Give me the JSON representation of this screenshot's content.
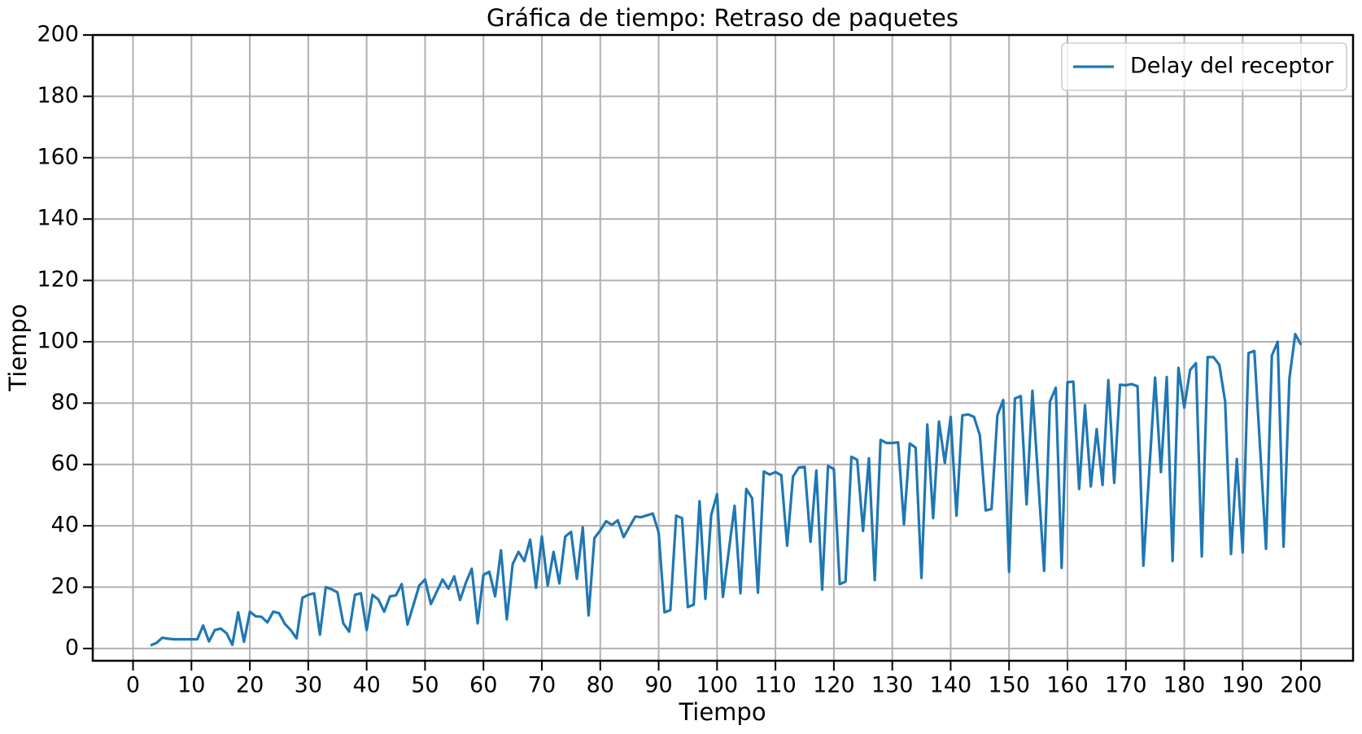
{
  "chart_data": {
    "type": "line",
    "title": "Gráfica de tiempo: Retraso de paquetes",
    "xlabel": "Tiempo",
    "ylabel": "Tiempo",
    "x": [
      3,
      4,
      5,
      6,
      7,
      8,
      9,
      10,
      11,
      12,
      13,
      14,
      15,
      16,
      17,
      18,
      19,
      20,
      21,
      22,
      23,
      24,
      25,
      26,
      27,
      28,
      29,
      30,
      31,
      32,
      33,
      34,
      35,
      36,
      37,
      38,
      39,
      40,
      41,
      42,
      43,
      44,
      45,
      46,
      47,
      49,
      50,
      51,
      53,
      54,
      55,
      56,
      57,
      58,
      59,
      60,
      61,
      62,
      63,
      64,
      65,
      66,
      67,
      68,
      69,
      70,
      71,
      72,
      73,
      74,
      75,
      76,
      77,
      78,
      79,
      80,
      81,
      82,
      83,
      84,
      86,
      87,
      89,
      90,
      91,
      92,
      93,
      94,
      95,
      96,
      97,
      98,
      99,
      100,
      101,
      103,
      104,
      105,
      106,
      107,
      108,
      109,
      110,
      111,
      112,
      113,
      114,
      115,
      116,
      117,
      118,
      119,
      120,
      121,
      122,
      123,
      124,
      125,
      126,
      127,
      128,
      129,
      130,
      131,
      132,
      133,
      134,
      135,
      136,
      137,
      138,
      139,
      140,
      141,
      142,
      143,
      144,
      145,
      146,
      147,
      148,
      149,
      150,
      151,
      152,
      153,
      154,
      156,
      157,
      158,
      159,
      160,
      161,
      162,
      163,
      164,
      165,
      166,
      167,
      168,
      169,
      170,
      171,
      172,
      173,
      175,
      176,
      177,
      178,
      179,
      180,
      181,
      182,
      183,
      184,
      185,
      186,
      187,
      188,
      189,
      190,
      191,
      192,
      194,
      195,
      196,
      197,
      198,
      199,
      200
    ],
    "series": [
      {
        "name": "Delay del receptor",
        "color": "#1f77b4",
        "values": [
          1.0,
          1.8,
          3.5,
          3.2,
          3.0,
          3.0,
          3.0,
          3.0,
          3.0,
          7.5,
          2.3,
          6.0,
          6.5,
          5.0,
          1.2,
          11.8,
          2.2,
          12.0,
          10.5,
          10.3,
          8.5,
          12.0,
          11.5,
          8.0,
          6.0,
          3.3,
          16.5,
          17.5,
          18.0,
          4.5,
          20.0,
          19.3,
          18.3,
          8.2,
          5.5,
          17.5,
          18.0,
          6.0,
          17.5,
          16.0,
          12.0,
          17.0,
          17.3,
          21.0,
          7.8,
          20.5,
          22.5,
          14.5,
          22.5,
          19.5,
          23.5,
          15.8,
          21.5,
          26.0,
          8.2,
          24.0,
          25.0,
          17.0,
          32.0,
          9.5,
          27.5,
          31.5,
          28.5,
          35.5,
          19.8,
          36.5,
          20.5,
          31.5,
          21.2,
          36.5,
          38.0,
          22.7,
          39.5,
          10.8,
          36.0,
          38.5,
          41.5,
          40.3,
          41.8,
          36.3,
          43.0,
          42.8,
          44.0,
          37.8,
          11.8,
          12.5,
          43.3,
          42.5,
          13.5,
          14.3,
          48.0,
          16.2,
          43.5,
          50.3,
          16.8,
          46.5,
          18.0,
          52.0,
          49.0,
          18.2,
          57.7,
          56.7,
          57.5,
          56.5,
          33.5,
          56.0,
          59.0,
          59.2,
          34.8,
          58.0,
          19.2,
          59.5,
          58.5,
          21.0,
          21.8,
          62.5,
          61.5,
          38.3,
          62.0,
          22.3,
          68.0,
          67.0,
          67.0,
          67.2,
          40.5,
          66.8,
          65.5,
          23.0,
          73.0,
          42.5,
          74.0,
          60.5,
          75.5,
          43.3,
          76.0,
          76.3,
          75.5,
          69.5,
          45.0,
          45.5,
          76.0,
          81.0,
          25.0,
          81.5,
          82.3,
          47.0,
          84.0,
          25.3,
          80.5,
          85.0,
          26.3,
          86.8,
          87.0,
          52.0,
          79.3,
          52.8,
          71.5,
          53.3,
          87.5,
          54.0,
          86.0,
          85.8,
          86.2,
          85.5,
          27.0,
          88.3,
          57.5,
          88.5,
          28.5,
          91.5,
          78.5,
          90.8,
          93.0,
          30.0,
          95.0,
          95.0,
          92.5,
          80.5,
          30.8,
          61.8,
          31.3,
          96.3,
          97.0,
          32.5,
          95.5,
          100.0,
          33.2,
          88.0,
          102.5,
          99.0
        ]
      }
    ],
    "xlim": [
      -6.9,
      208.9
    ],
    "ylim": [
      -4,
      200
    ],
    "xticks": [
      0,
      10,
      20,
      30,
      40,
      50,
      60,
      70,
      80,
      90,
      100,
      110,
      120,
      130,
      140,
      150,
      160,
      170,
      180,
      190,
      200
    ],
    "yticks": [
      0,
      20,
      40,
      60,
      80,
      100,
      120,
      140,
      160,
      180,
      200
    ],
    "grid": true,
    "legend": "upper right"
  }
}
